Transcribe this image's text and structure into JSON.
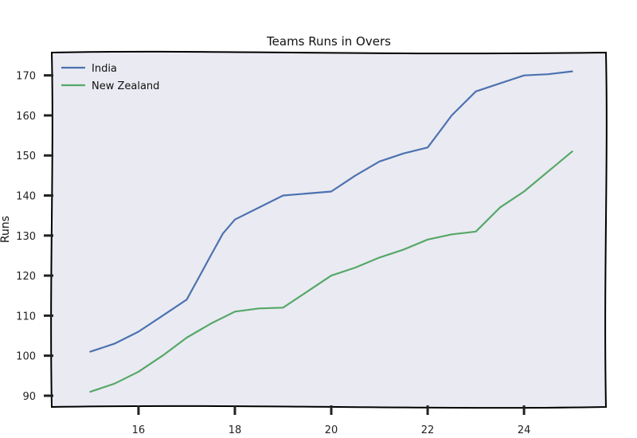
{
  "chart_data": {
    "type": "line",
    "title": "Teams Runs in Overs",
    "xlabel": "",
    "ylabel": "Runs",
    "xlim": [
      14.2,
      25.7
    ],
    "ylim": [
      87.2,
      175.7
    ],
    "xticks": [
      16,
      18,
      20,
      22,
      24
    ],
    "yticks": [
      90,
      100,
      110,
      120,
      130,
      140,
      150,
      160,
      170
    ],
    "grid": false,
    "legend_position": "top-left",
    "background": "#eaeaf2",
    "series": [
      {
        "name": "India",
        "color": "#4c72b0",
        "x": [
          15,
          15.5,
          16,
          16.5,
          17,
          17.25,
          17.5,
          17.75,
          18,
          18.5,
          19,
          19.5,
          20,
          20.5,
          21,
          21.5,
          22,
          22.25,
          22.5,
          23,
          23.5,
          24,
          24.5,
          25
        ],
        "y": [
          101,
          103,
          106,
          110,
          114,
          119.5,
          125,
          130.5,
          134,
          137,
          140,
          140.5,
          141,
          145,
          148.5,
          150.5,
          152,
          156,
          160,
          166,
          168,
          170,
          170.3,
          171
        ]
      },
      {
        "name": "New Zealand",
        "color": "#55a868",
        "x": [
          15,
          15.5,
          16,
          16.5,
          17,
          17.5,
          18,
          18.5,
          19,
          19.5,
          20,
          20.5,
          21,
          21.5,
          22,
          22.5,
          23,
          23.5,
          24,
          24.5,
          25
        ],
        "y": [
          91,
          93,
          96,
          100,
          104.5,
          108,
          111,
          111.8,
          112,
          116,
          120,
          122,
          124.5,
          126.5,
          129,
          130.3,
          131,
          137,
          141,
          146,
          151
        ]
      }
    ]
  }
}
